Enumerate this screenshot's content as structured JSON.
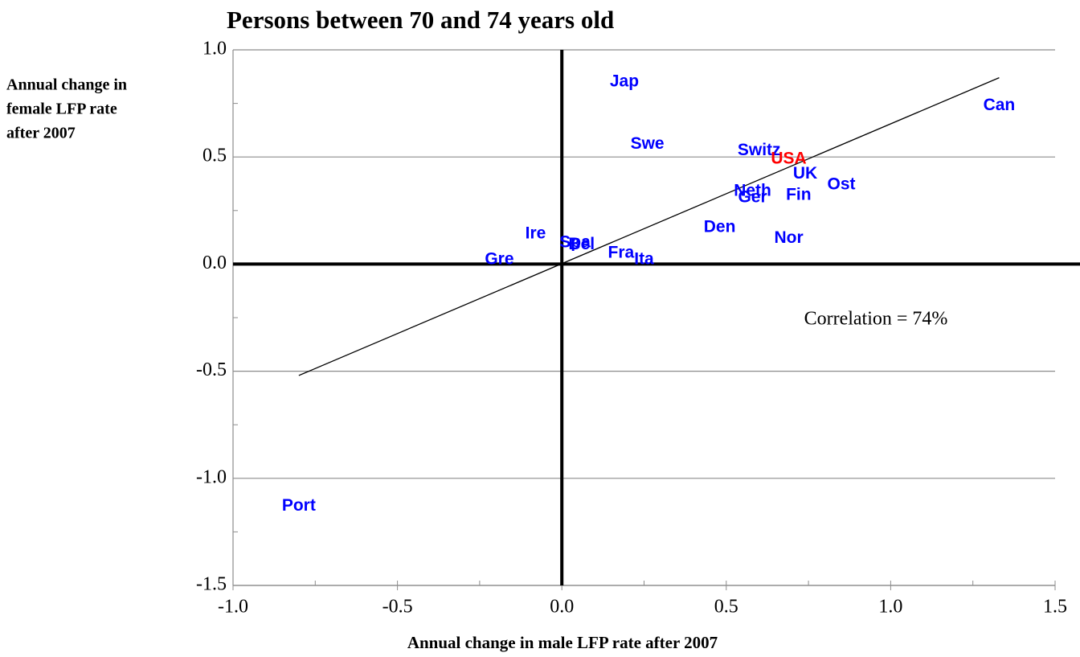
{
  "chart_data": {
    "type": "scatter",
    "title": "Persons between 70 and 74 years old",
    "xlabel": "Annual change in male LFP rate after 2007",
    "ylabel": [
      "Annual change in",
      "female LFP rate",
      "after 2007"
    ],
    "annotation": "Correlation = 74%",
    "xlim": [
      -1.0,
      1.5
    ],
    "ylim": [
      -1.5,
      1.0
    ],
    "xticks": [
      {
        "value": -1.0,
        "label": "-1.0"
      },
      -0.5,
      {
        "value": 0.0,
        "label": "0.0"
      },
      0.5,
      {
        "value": 1.0,
        "label": "1.0"
      },
      1.5
    ],
    "yticks": [
      {
        "value": -1.5,
        "label": "-1.5"
      },
      {
        "value": -1.0,
        "label": "-1.0"
      },
      -0.5,
      {
        "value": 0.0,
        "label": "0.0"
      },
      0.5,
      {
        "value": 1.0,
        "label": "1.0"
      }
    ],
    "x_minor_ticks": [
      -0.75,
      -0.25,
      0.25,
      0.75,
      1.25
    ],
    "y_minor_ticks": [
      -1.25,
      -0.75,
      -0.25,
      0.25,
      0.75
    ],
    "grid": true,
    "points": [
      {
        "label": "Jap",
        "x": 0.19,
        "y": 0.85,
        "color": "#0000ff"
      },
      {
        "label": "Can",
        "x": 1.33,
        "y": 0.74,
        "color": "#0000ff"
      },
      {
        "label": "Swe",
        "x": 0.26,
        "y": 0.56,
        "color": "#0000ff"
      },
      {
        "label": "Switz",
        "x": 0.6,
        "y": 0.53,
        "color": "#0000ff"
      },
      {
        "label": "USA",
        "x": 0.69,
        "y": 0.49,
        "color": "#ff0000"
      },
      {
        "label": "UK",
        "x": 0.74,
        "y": 0.42,
        "color": "#0000ff"
      },
      {
        "label": "Ost",
        "x": 0.85,
        "y": 0.37,
        "color": "#0000ff"
      },
      {
        "label": "Neth",
        "x": 0.58,
        "y": 0.34,
        "color": "#0000ff"
      },
      {
        "label": "Ger",
        "x": 0.58,
        "y": 0.31,
        "color": "#0000ff"
      },
      {
        "label": "Fin",
        "x": 0.72,
        "y": 0.32,
        "color": "#0000ff"
      },
      {
        "label": "Den",
        "x": 0.48,
        "y": 0.17,
        "color": "#0000ff"
      },
      {
        "label": "Nor",
        "x": 0.69,
        "y": 0.12,
        "color": "#0000ff"
      },
      {
        "label": "Ire",
        "x": -0.08,
        "y": 0.14,
        "color": "#0000ff"
      },
      {
        "label": "Spa",
        "x": 0.04,
        "y": 0.1,
        "color": "#0000ff"
      },
      {
        "label": "Bel",
        "x": 0.06,
        "y": 0.09,
        "color": "#0000ff"
      },
      {
        "label": "Fra",
        "x": 0.18,
        "y": 0.05,
        "color": "#0000ff"
      },
      {
        "label": "Ita",
        "x": 0.25,
        "y": 0.02,
        "color": "#0000ff"
      },
      {
        "label": "Gre",
        "x": -0.19,
        "y": 0.02,
        "color": "#0000ff"
      },
      {
        "label": "Port",
        "x": -0.8,
        "y": -1.13,
        "color": "#0000ff"
      }
    ],
    "trendline": {
      "x": [
        -0.8,
        1.33
      ],
      "y": [
        -0.52,
        0.87
      ],
      "color": "#000000"
    }
  }
}
